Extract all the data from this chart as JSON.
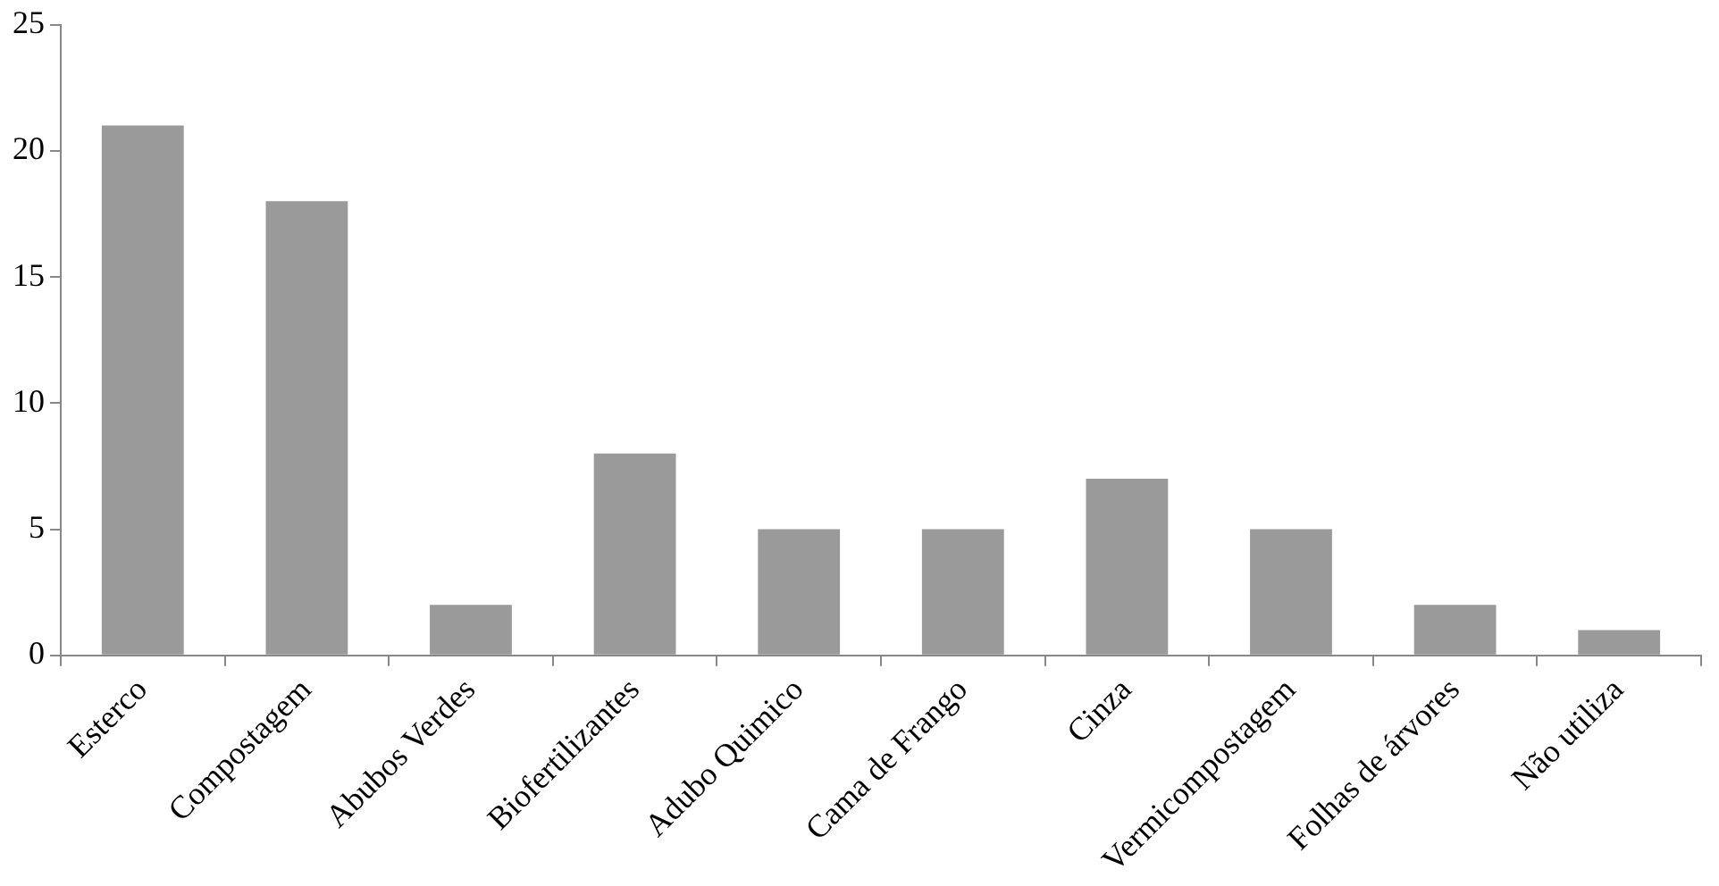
{
  "chart_data": {
    "type": "bar",
    "categories": [
      "Esterco",
      "Compostagem",
      "Abubos Verdes",
      "Biofertilizantes",
      "Adubo Quimico",
      "Cama de Frango",
      "Cinza",
      "Vermicompostagem",
      "Folhas de árvores",
      "Não utiliza"
    ],
    "values": [
      21,
      18,
      2,
      8,
      5,
      5,
      7,
      5,
      2,
      1
    ],
    "color": "#9a9a9a",
    "ylim": [
      0,
      25
    ],
    "yticks": [
      0,
      5,
      10,
      15,
      20,
      25
    ],
    "grid": false,
    "legend": false
  }
}
